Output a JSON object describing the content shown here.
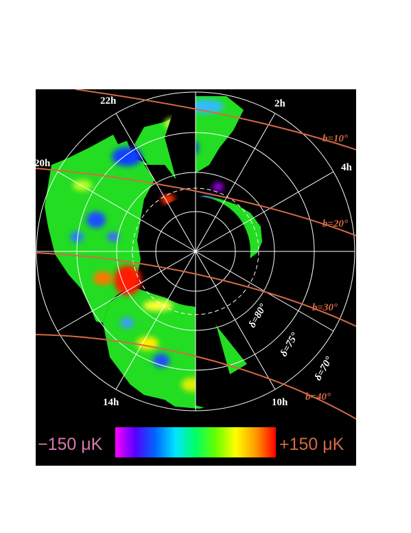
{
  "colors": {
    "background_frame": "#000000",
    "page": "#ffffff",
    "grid": "#ffffff",
    "galactic_lines": "#d66a44",
    "scale_min_text": "#d77bb0",
    "scale_max_text": "#d66a44"
  },
  "ra_labels": [
    "22h",
    "2h",
    "20h",
    "4h",
    "14h",
    "10h"
  ],
  "dec_labels": [
    "δ=80°",
    "δ=75°",
    "δ=70°"
  ],
  "galactic_labels": [
    "b=10°",
    "b=20°",
    "b=30°",
    "b=40°"
  ],
  "scale": {
    "min_label": "−150 μK",
    "max_label": "+150 μK",
    "gradient": [
      "#ff00ff",
      "#5500ff",
      "#0066ff",
      "#00e5ff",
      "#00ff66",
      "#66ff00",
      "#ffff00",
      "#ff9900",
      "#ff0000"
    ]
  }
}
